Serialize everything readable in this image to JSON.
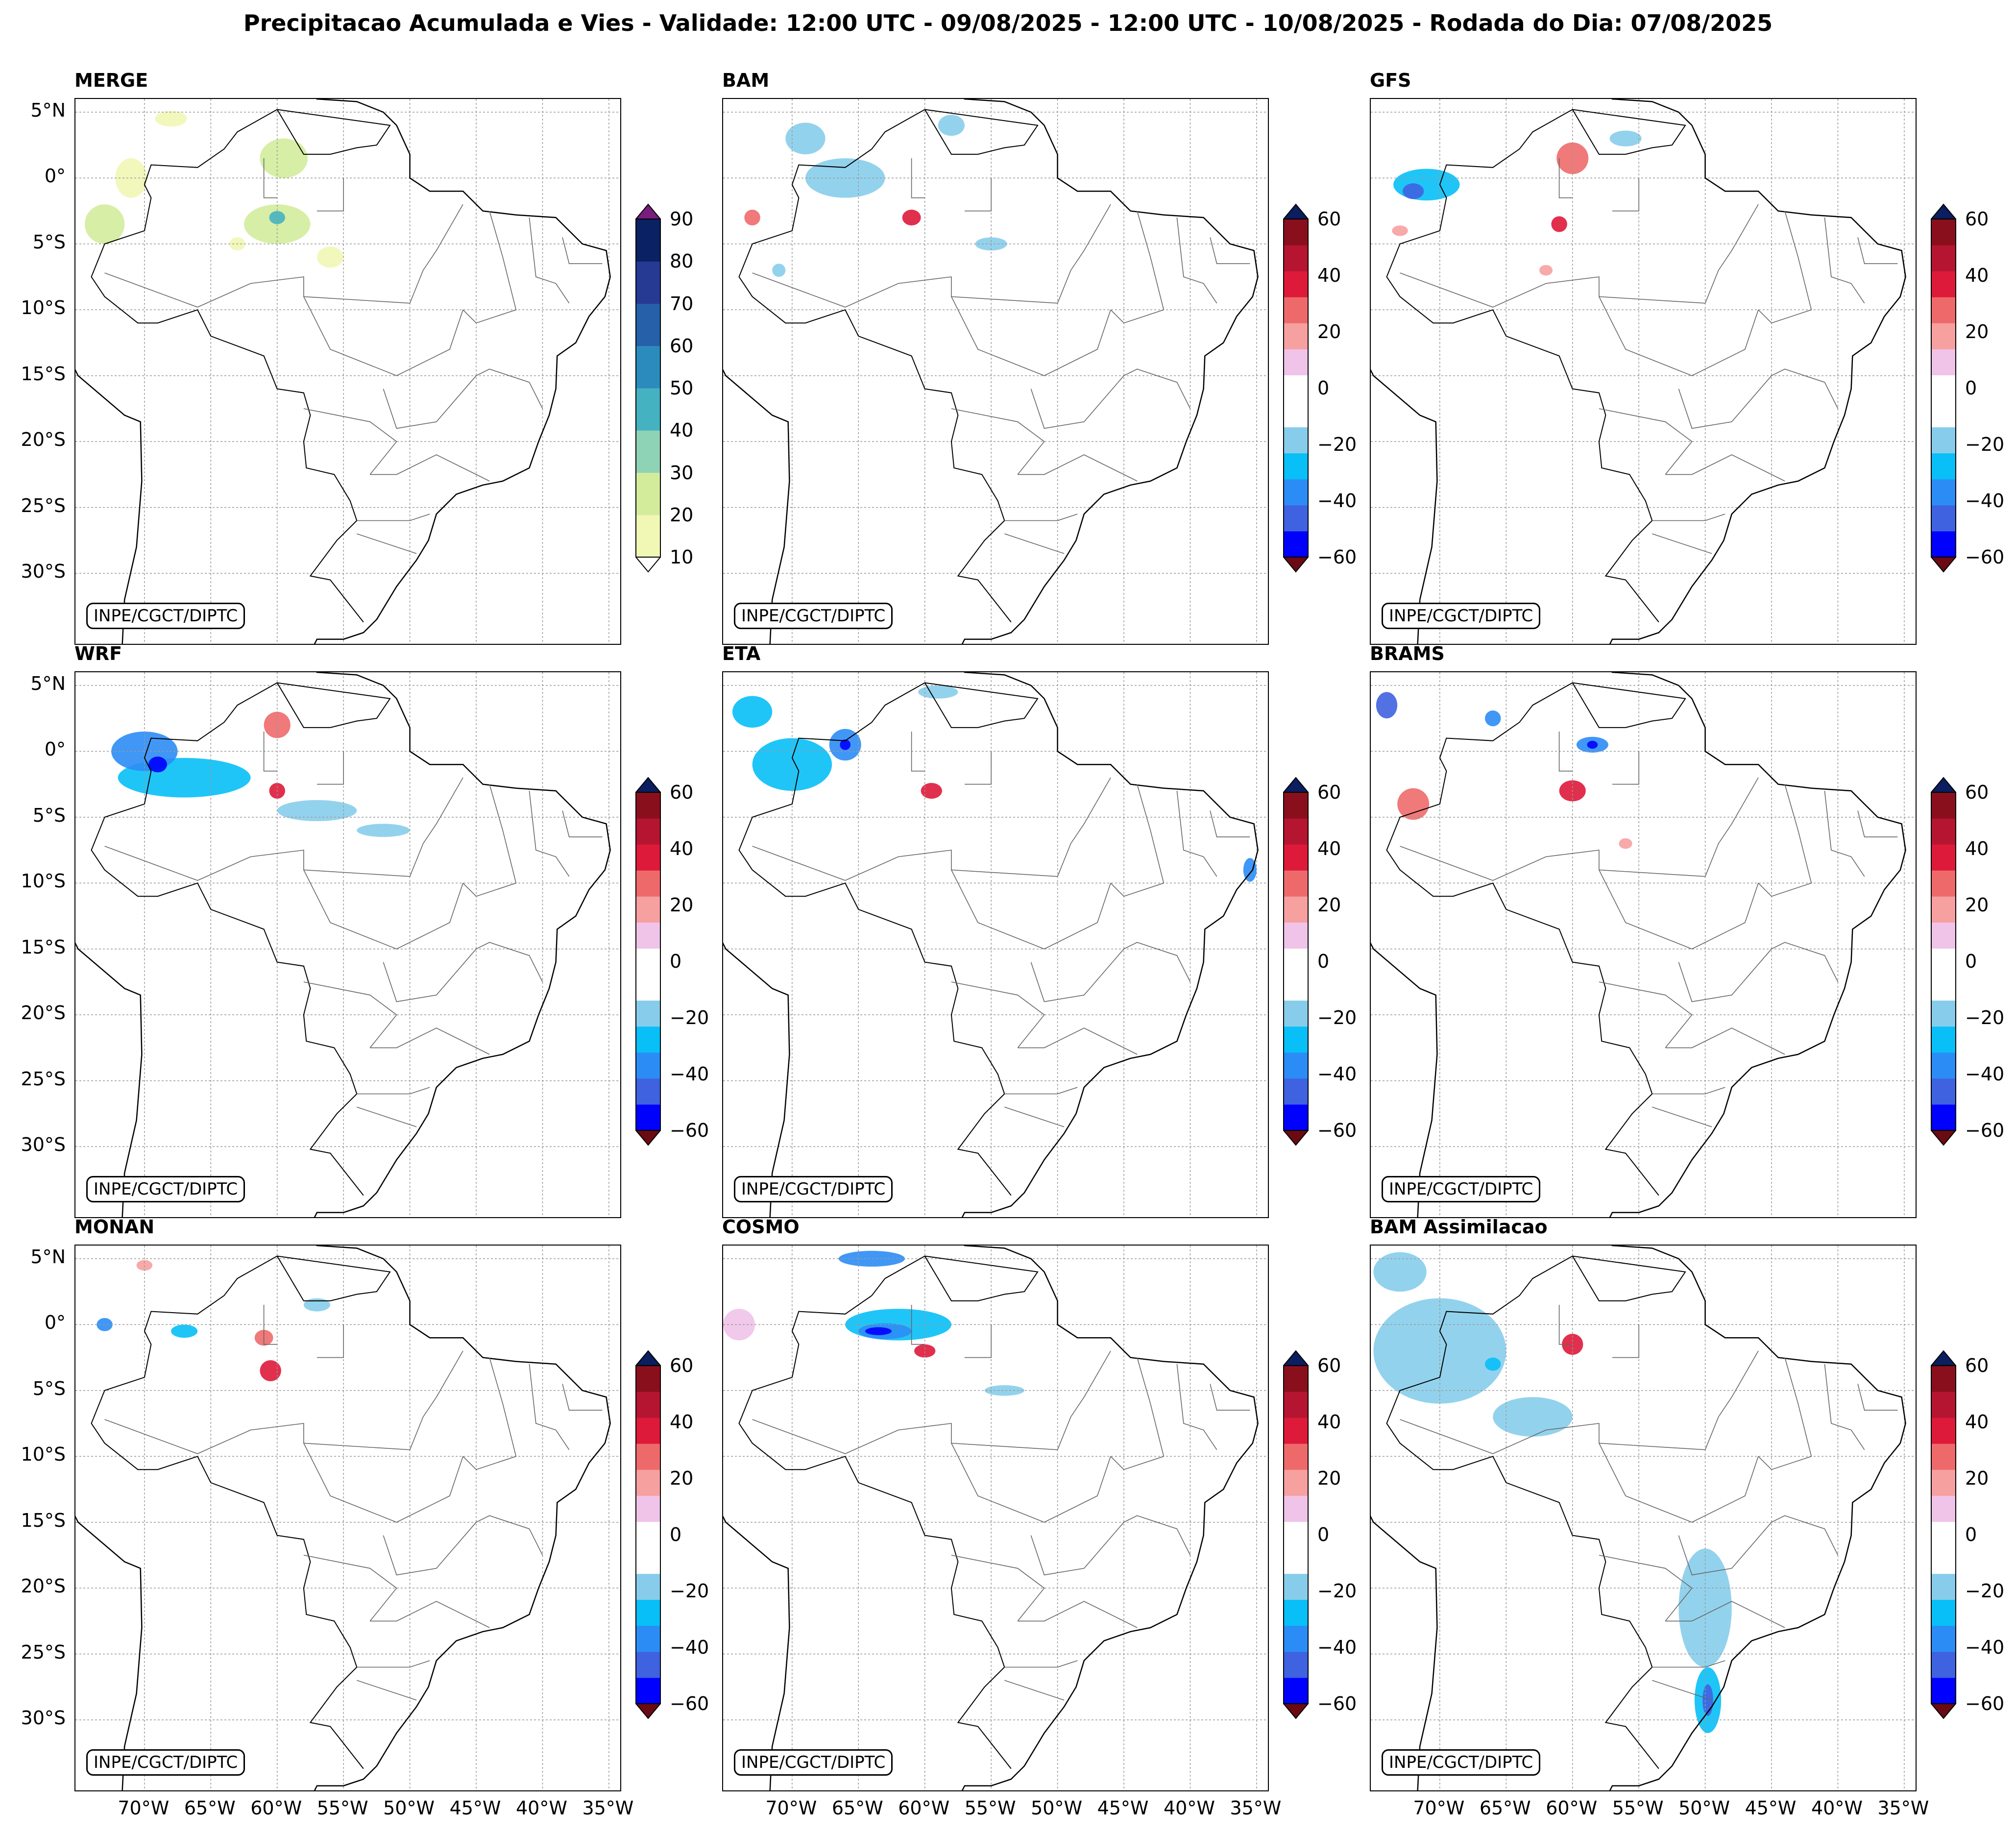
{
  "title": "Precipitacao Acumulada e Vies - Validade: 12:00 UTC - 09/08/2025 - 12:00 UTC - 10/08/2025 - Rodada do Dia: 07/08/2025",
  "credit": "INPE/CGCT/DIPTC",
  "lat_labels": [
    "5°N",
    "0°",
    "5°S",
    "10°S",
    "15°S",
    "20°S",
    "25°S",
    "30°S"
  ],
  "lon_labels": [
    "70°W",
    "65°W",
    "60°W",
    "55°W",
    "50°W",
    "45°W",
    "40°W",
    "35°W"
  ],
  "colorbars": {
    "precip": {
      "ticks": [
        "90",
        "80",
        "70",
        "60",
        "50",
        "40",
        "30",
        "20",
        "10"
      ],
      "colors": [
        "#f1f7b5",
        "#d3ec9c",
        "#8fd3b6",
        "#45b2c1",
        "#2b8bbd",
        "#2560a8",
        "#263a94",
        "#0a2263"
      ],
      "over_color": "#7a1b7e",
      "under_color": "#ffffff"
    },
    "bias": {
      "ticks": [
        "60",
        "40",
        "20",
        "0",
        "−20",
        "−40",
        "−60"
      ],
      "colors": [
        "#0000ff",
        "#3f62e0",
        "#2c8cf5",
        "#08bff7",
        "#87cdeb",
        "#ffffff",
        "#ffffff",
        "#f0c3e8",
        "#f7a0a0",
        "#ee6a6a",
        "#de1a3a",
        "#b51530",
        "#8a0f1c"
      ],
      "over_color": "#0a1e60",
      "under_color": "#6a0a12"
    }
  },
  "panels": [
    {
      "title": "MERGE",
      "colorbar": "precip"
    },
    {
      "title": "BAM",
      "colorbar": "bias"
    },
    {
      "title": "GFS",
      "colorbar": "bias"
    },
    {
      "title": "WRF",
      "colorbar": "bias"
    },
    {
      "title": "ETA",
      "colorbar": "bias"
    },
    {
      "title": "BRAMS",
      "colorbar": "bias"
    },
    {
      "title": "MONAN",
      "colorbar": "bias"
    },
    {
      "title": "COSMO",
      "colorbar": "bias"
    },
    {
      "title": "BAM Assimilacao",
      "colorbar": "bias"
    }
  ]
}
